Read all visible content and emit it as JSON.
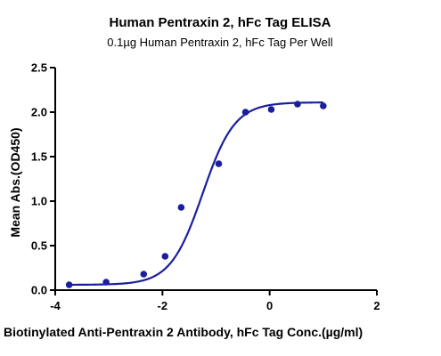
{
  "chart_data": {
    "type": "scatter",
    "title": "Human Pentraxin 2, hFc Tag ELISA",
    "subtitle": "0.1µg Human Pentraxin 2, hFc Tag Per Well",
    "xlabel": "Biotinylated Anti-Pentraxin 2 Antibody, hFc Tag Conc.(µg/ml)",
    "ylabel": "Mean Abs.(OD450)",
    "xlim": [
      -4,
      2
    ],
    "ylim": [
      0,
      2.5
    ],
    "x_ticks": [
      -4,
      -2,
      0,
      2
    ],
    "y_ticks": [
      0.0,
      0.5,
      1.0,
      1.5,
      2.0,
      2.5
    ],
    "x_tick_labels": [
      "-4",
      "-2",
      "0",
      "2"
    ],
    "y_tick_labels": [
      "0.0",
      "0.5",
      "1.0",
      "1.5",
      "2.0",
      "2.5"
    ],
    "grid": false,
    "legend": "none",
    "series": [
      {
        "x": [
          -3.74,
          -3.05,
          -2.35,
          -1.95,
          -1.65,
          -0.95,
          -0.45,
          0.03,
          0.52,
          1.0
        ],
        "y": [
          0.06,
          0.09,
          0.18,
          0.38,
          0.93,
          1.42,
          2.0,
          2.03,
          2.09,
          2.07
        ],
        "fit": {
          "model": "4PL",
          "bottom": 0.06,
          "top": 2.11,
          "logEC50": -1.25,
          "hill": 1.45,
          "x_range": [
            -3.74,
            1.0
          ]
        }
      }
    ],
    "color": "#1a1f9c"
  }
}
